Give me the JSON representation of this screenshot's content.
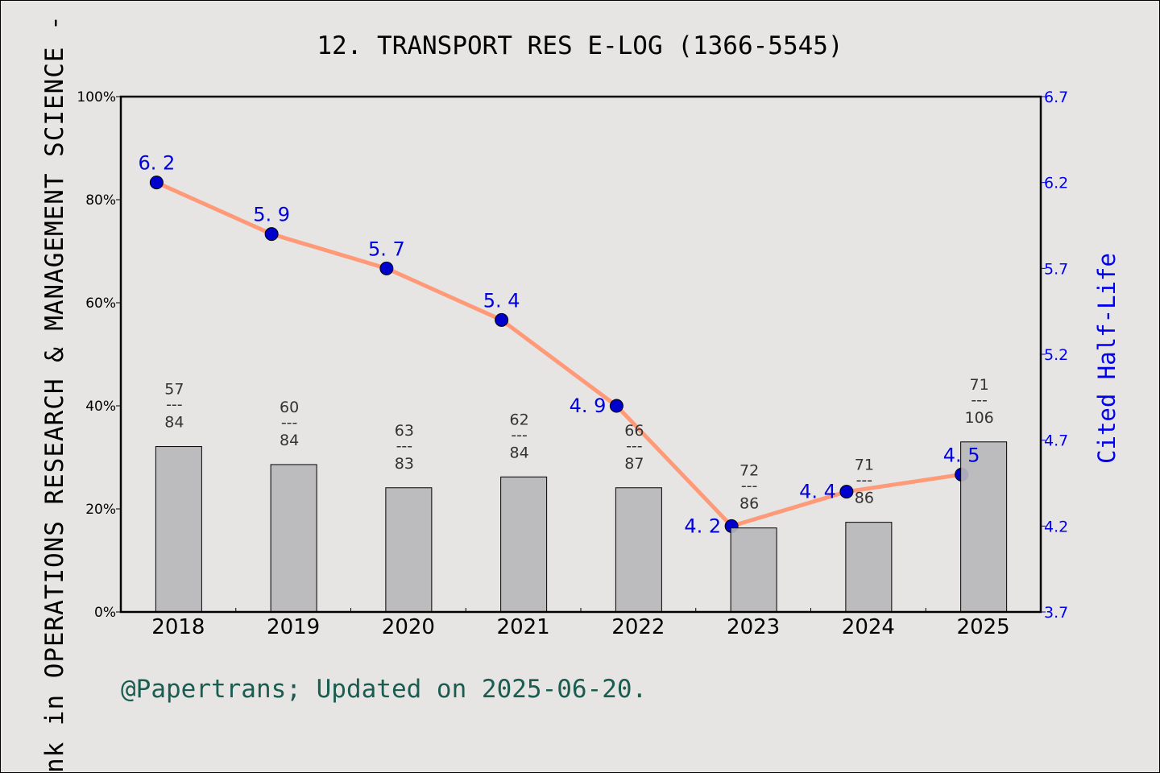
{
  "chart_data": {
    "type": "bar+line",
    "title": "12. TRANSPORT RES E-LOG (1366-5545)",
    "ylabel": "nk in OPERATIONS RESEARCH & MANAGEMENT SCIENCE - S",
    "y2label": "Cited Half-Life",
    "ylim": [
      0,
      100
    ],
    "y2lim": [
      3.7,
      6.7
    ],
    "yticks": [
      "0%",
      "20%",
      "40%",
      "60%",
      "80%",
      "100%"
    ],
    "y2ticks": [
      "3.7",
      "4.2",
      "4.7",
      "5.2",
      "5.7",
      "6.2",
      "6.7"
    ],
    "categories": [
      "2018",
      "2019",
      "2020",
      "2021",
      "2022",
      "2023",
      "2024",
      "2025"
    ],
    "bars": {
      "values": [
        32.1,
        28.6,
        24.1,
        26.2,
        24.1,
        16.3,
        17.4,
        33.0
      ],
      "rank": [
        "57",
        "60",
        "63",
        "62",
        "66",
        "72",
        "71",
        "71"
      ],
      "total": [
        "84",
        "84",
        "83",
        "84",
        "87",
        "86",
        "86",
        "106"
      ],
      "separator": "---",
      "color": "#b8b9bb"
    },
    "line": {
      "values": [
        6.2,
        5.9,
        5.7,
        5.4,
        4.9,
        4.2,
        4.4,
        4.5
      ],
      "labels": [
        "6. 2",
        "5. 9",
        "5. 7",
        "5. 4",
        "4. 9",
        "4. 2",
        "4. 4",
        "4. 5"
      ],
      "line_color": "#ff9a78",
      "marker_color": "#0000cc"
    },
    "grid": false
  },
  "footer": "@Papertrans; Updated on 2025-06-20."
}
